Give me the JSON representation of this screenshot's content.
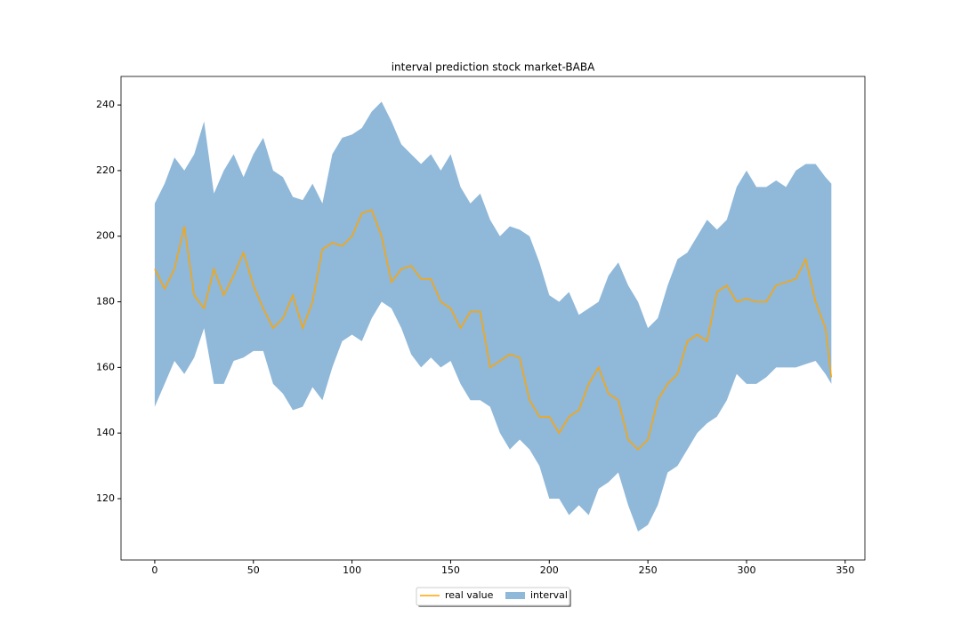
{
  "chart_data": {
    "type": "interval",
    "title": "interval prediction stock market-BABA",
    "x": [
      0,
      5,
      10,
      15,
      20,
      25,
      30,
      35,
      40,
      45,
      50,
      55,
      60,
      65,
      70,
      75,
      80,
      85,
      90,
      95,
      100,
      105,
      110,
      115,
      120,
      125,
      130,
      135,
      140,
      145,
      150,
      155,
      160,
      165,
      170,
      175,
      180,
      185,
      190,
      195,
      200,
      205,
      210,
      215,
      220,
      225,
      230,
      235,
      240,
      245,
      250,
      255,
      260,
      265,
      270,
      275,
      280,
      285,
      290,
      295,
      300,
      305,
      310,
      315,
      320,
      325,
      330,
      335,
      340,
      343
    ],
    "series": [
      {
        "name": "real value",
        "color": "#ffa500",
        "values": [
          190,
          184,
          190,
          203,
          182,
          178,
          190,
          182,
          188,
          195,
          185,
          178,
          172,
          175,
          182,
          172,
          180,
          196,
          198,
          197,
          200,
          207,
          208,
          200,
          186,
          190,
          191,
          187,
          187,
          180,
          178,
          172,
          177,
          177,
          160,
          162,
          164,
          163,
          150,
          145,
          145,
          140,
          145,
          147,
          155,
          160,
          152,
          150,
          138,
          135,
          138,
          150,
          155,
          158,
          168,
          170,
          168,
          183,
          185,
          180,
          181,
          180,
          180,
          185,
          186,
          187,
          193,
          180,
          172,
          157
        ]
      },
      {
        "name": "interval",
        "color": "#8fb8d9",
        "upper": [
          210,
          216,
          224,
          220,
          225,
          235,
          213,
          220,
          225,
          218,
          225,
          230,
          220,
          218,
          212,
          211,
          216,
          210,
          225,
          230,
          231,
          233,
          238,
          241,
          235,
          228,
          225,
          222,
          225,
          220,
          225,
          215,
          210,
          213,
          205,
          200,
          203,
          202,
          200,
          192,
          182,
          180,
          183,
          176,
          178,
          180,
          188,
          192,
          185,
          180,
          172,
          175,
          185,
          193,
          195,
          200,
          205,
          202,
          205,
          215,
          220,
          215,
          215,
          217,
          215,
          220,
          222,
          222,
          218,
          216
        ],
        "lower": [
          148,
          155,
          162,
          158,
          163,
          172,
          155,
          155,
          162,
          163,
          165,
          165,
          155,
          152,
          147,
          148,
          154,
          150,
          160,
          168,
          170,
          168,
          175,
          180,
          178,
          172,
          164,
          160,
          163,
          160,
          162,
          155,
          150,
          150,
          148,
          140,
          135,
          138,
          135,
          130,
          120,
          120,
          115,
          118,
          115,
          123,
          125,
          128,
          118,
          110,
          112,
          118,
          128,
          130,
          135,
          140,
          143,
          145,
          150,
          158,
          155,
          155,
          157,
          160,
          160,
          160,
          161,
          162,
          158,
          155
        ]
      }
    ],
    "xlim": [
      -17.1,
      360
    ],
    "xticks": [
      0,
      50,
      100,
      150,
      200,
      250,
      300,
      350
    ],
    "ylim": [
      101.3,
      248.7
    ],
    "yticks": [
      120,
      140,
      160,
      180,
      200,
      220,
      240
    ],
    "grid": false,
    "legend": "bottom"
  }
}
